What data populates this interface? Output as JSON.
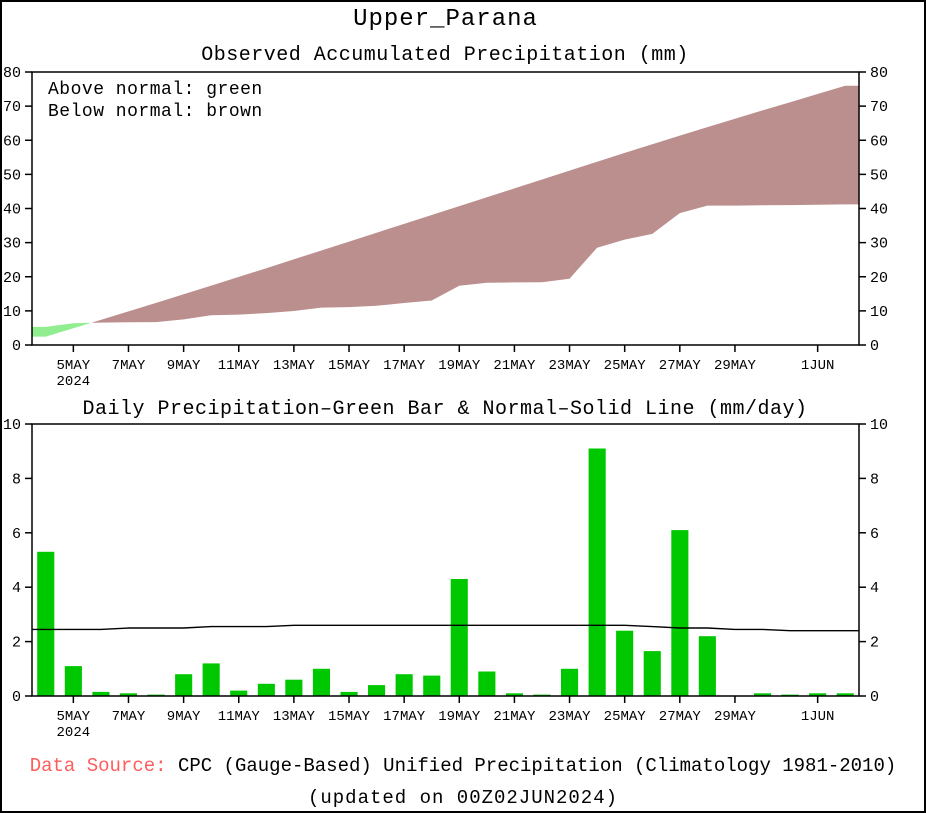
{
  "page": {
    "title": "Upper_Parana",
    "colors": {
      "above_normal_fill": "#90ee90",
      "below_normal_fill": "#bc8f8f",
      "bar_fill": "#00c800",
      "normal_line": "#000000",
      "axis": "#000000",
      "source_label": "#ff5c5c"
    },
    "footer": {
      "source_label": "Data Source:",
      "source_text": " CPC (Gauge-Based) Unified Precipitation (Climatology 1981-2010)",
      "updated_text": "(updated on 00Z02JUN2024)"
    }
  },
  "chart_data": [
    {
      "type": "area",
      "title": "Observed Accumulated Precipitation (mm)",
      "annotations": [
        "Above normal: green",
        "Below normal: brown"
      ],
      "xlabel": "",
      "ylabel": "",
      "ylim": [
        0,
        80
      ],
      "yticks": [
        0,
        10,
        20,
        30,
        40,
        50,
        60,
        70,
        80
      ],
      "x": [
        "4MAY",
        "5MAY",
        "6MAY",
        "7MAY",
        "8MAY",
        "9MAY",
        "10MAY",
        "11MAY",
        "12MAY",
        "13MAY",
        "14MAY",
        "15MAY",
        "16MAY",
        "17MAY",
        "18MAY",
        "19MAY",
        "20MAY",
        "21MAY",
        "22MAY",
        "23MAY",
        "24MAY",
        "25MAY",
        "26MAY",
        "27MAY",
        "28MAY",
        "29MAY",
        "30MAY",
        "31MAY",
        "1JUN",
        "2JUN"
      ],
      "xticks": [
        {
          "i": 1,
          "label": "5MAY"
        },
        {
          "i": 3,
          "label": "7MAY"
        },
        {
          "i": 5,
          "label": "9MAY"
        },
        {
          "i": 7,
          "label": "11MAY"
        },
        {
          "i": 9,
          "label": "13MAY"
        },
        {
          "i": 11,
          "label": "15MAY"
        },
        {
          "i": 13,
          "label": "17MAY"
        },
        {
          "i": 15,
          "label": "19MAY"
        },
        {
          "i": 17,
          "label": "21MAY"
        },
        {
          "i": 19,
          "label": "23MAY"
        },
        {
          "i": 21,
          "label": "25MAY"
        },
        {
          "i": 23,
          "label": "27MAY"
        },
        {
          "i": 25,
          "label": "29MAY"
        },
        {
          "i": 28,
          "label": "1JUN"
        }
      ],
      "year_label": "2024",
      "series": [
        {
          "name": "observed_accumulated",
          "values": [
            5.3,
            6.4,
            6.55,
            6.65,
            6.7,
            7.5,
            8.7,
            8.9,
            9.35,
            9.95,
            10.95,
            11.1,
            11.5,
            12.3,
            13.05,
            17.35,
            18.25,
            18.35,
            18.4,
            19.4,
            28.5,
            30.9,
            32.55,
            38.65,
            40.85,
            40.85,
            40.95,
            41.0,
            41.1,
            41.2
          ]
        },
        {
          "name": "normal_accumulated",
          "values": [
            2.45,
            4.9,
            7.35,
            9.85,
            12.35,
            14.85,
            17.4,
            19.95,
            22.5,
            25.1,
            27.7,
            30.3,
            32.9,
            35.5,
            38.1,
            40.7,
            43.3,
            45.9,
            48.5,
            51.1,
            53.7,
            56.3,
            58.85,
            61.35,
            63.85,
            66.3,
            68.75,
            71.15,
            73.55,
            75.95
          ]
        }
      ]
    },
    {
      "type": "bar",
      "title": "Daily Precipitation–Green Bar & Normal–Solid Line (mm/day)",
      "xlabel": "",
      "ylabel": "",
      "ylim": [
        0,
        10
      ],
      "yticks": [
        0,
        2,
        4,
        6,
        8,
        10
      ],
      "x": [
        "4MAY",
        "5MAY",
        "6MAY",
        "7MAY",
        "8MAY",
        "9MAY",
        "10MAY",
        "11MAY",
        "12MAY",
        "13MAY",
        "14MAY",
        "15MAY",
        "16MAY",
        "17MAY",
        "18MAY",
        "19MAY",
        "20MAY",
        "21MAY",
        "22MAY",
        "23MAY",
        "24MAY",
        "25MAY",
        "26MAY",
        "27MAY",
        "28MAY",
        "29MAY",
        "30MAY",
        "31MAY",
        "1JUN",
        "2JUN"
      ],
      "xticks": [
        {
          "i": 1,
          "label": "5MAY"
        },
        {
          "i": 3,
          "label": "7MAY"
        },
        {
          "i": 5,
          "label": "9MAY"
        },
        {
          "i": 7,
          "label": "11MAY"
        },
        {
          "i": 9,
          "label": "13MAY"
        },
        {
          "i": 11,
          "label": "15MAY"
        },
        {
          "i": 13,
          "label": "17MAY"
        },
        {
          "i": 15,
          "label": "19MAY"
        },
        {
          "i": 17,
          "label": "21MAY"
        },
        {
          "i": 19,
          "label": "23MAY"
        },
        {
          "i": 21,
          "label": "25MAY"
        },
        {
          "i": 23,
          "label": "27MAY"
        },
        {
          "i": 25,
          "label": "29MAY"
        },
        {
          "i": 28,
          "label": "1JUN"
        }
      ],
      "year_label": "2024",
      "series": [
        {
          "name": "daily_precipitation",
          "type": "bar",
          "values": [
            5.3,
            1.1,
            0.15,
            0.1,
            0.05,
            0.8,
            1.2,
            0.2,
            0.45,
            0.6,
            1.0,
            0.15,
            0.4,
            0.8,
            0.75,
            4.3,
            0.9,
            0.1,
            0.05,
            1.0,
            9.1,
            2.4,
            1.65,
            6.1,
            2.2,
            0.0,
            0.1,
            0.05,
            0.1,
            0.1
          ]
        },
        {
          "name": "daily_normal",
          "type": "line",
          "values": [
            2.45,
            2.45,
            2.45,
            2.5,
            2.5,
            2.5,
            2.55,
            2.55,
            2.55,
            2.6,
            2.6,
            2.6,
            2.6,
            2.6,
            2.6,
            2.6,
            2.6,
            2.6,
            2.6,
            2.6,
            2.6,
            2.6,
            2.55,
            2.5,
            2.5,
            2.45,
            2.45,
            2.4,
            2.4,
            2.4
          ]
        }
      ]
    }
  ]
}
